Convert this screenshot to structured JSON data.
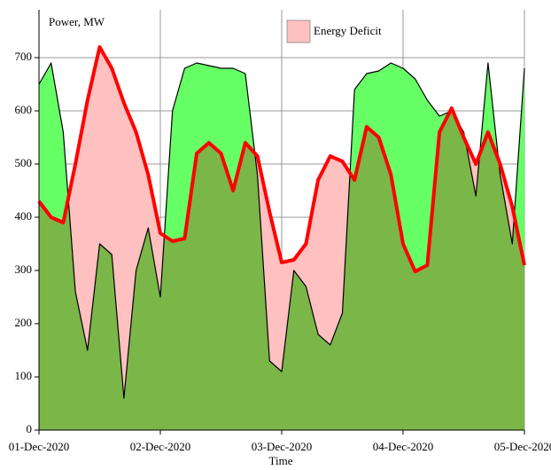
{
  "chart_data": {
    "type": "deficit_area",
    "y_label": "Power, MW",
    "x_label": "Time",
    "legend": {
      "label": "Energy Deficit",
      "color": "#ffc0c0"
    },
    "x": [
      0,
      0.1,
      0.2,
      0.3,
      0.4,
      0.5,
      0.6,
      0.7,
      0.8,
      0.9,
      1.0,
      1.1,
      1.2,
      1.3,
      1.4,
      1.5,
      1.6,
      1.7,
      1.8,
      1.9,
      2.0,
      2.1,
      2.2,
      2.3,
      2.4,
      2.5,
      2.6,
      2.7,
      2.8,
      2.9,
      3.0,
      3.1,
      3.2,
      3.3,
      3.4,
      3.5,
      3.6,
      3.7,
      3.8,
      3.9,
      4.0
    ],
    "series": [
      {
        "color": "#000000",
        "width": 1.2,
        "values": [
          650,
          690,
          560,
          260,
          150,
          350,
          330,
          60,
          300,
          380,
          250,
          600,
          680,
          690,
          685,
          680,
          680,
          670,
          480,
          130,
          110,
          300,
          270,
          180,
          160,
          220,
          640,
          670,
          675,
          690,
          680,
          660,
          620,
          590,
          600,
          560,
          440,
          690,
          480,
          350,
          680
        ]
      },
      {
        "color": "#ff0000",
        "width": 4,
        "values": [
          430,
          400,
          390,
          500,
          620,
          720,
          680,
          615,
          560,
          480,
          370,
          355,
          360,
          520,
          540,
          520,
          450,
          540,
          515,
          410,
          315,
          320,
          350,
          470,
          515,
          505,
          470,
          570,
          550,
          480,
          350,
          298,
          310,
          560,
          605,
          550,
          500,
          560,
          500,
          420,
          310
        ]
      }
    ],
    "fills": {
      "surplus": "#66ff66",
      "deficit": "#ffc0c0",
      "covered": "#7ab648"
    },
    "xlim": [
      0,
      4
    ],
    "xticks": [
      {
        "value": 0,
        "label": "01-Dec-2020"
      },
      {
        "value": 1,
        "label": "02-Dec-2020"
      },
      {
        "value": 2,
        "label": "03-Dec-2020"
      },
      {
        "value": 3,
        "label": "04-Dec-2020"
      },
      {
        "value": 4,
        "label": "05-Dec-2020"
      }
    ],
    "ylim": [
      0,
      790
    ],
    "yticks": [
      0,
      100,
      200,
      300,
      400,
      500,
      600,
      700
    ],
    "grid": true
  }
}
